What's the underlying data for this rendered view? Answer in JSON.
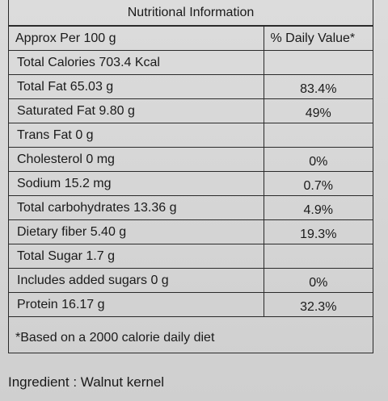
{
  "title": "Nutritional Information",
  "header": {
    "per": "Approx Per 100 g",
    "dv": "% Daily Value*"
  },
  "rows": [
    {
      "nutrient": "Total Calories 703.4 Kcal",
      "dv": ""
    },
    {
      "nutrient": "Total Fat 65.03 g",
      "dv": "83.4%"
    },
    {
      "nutrient": "Saturated Fat 9.80 g",
      "dv": "49%"
    },
    {
      "nutrient": "Trans Fat 0 g",
      "dv": ""
    },
    {
      "nutrient": "Cholesterol 0 mg",
      "dv": "0%"
    },
    {
      "nutrient": "Sodium 15.2 mg",
      "dv": "0.7%"
    },
    {
      "nutrient": "Total carbohydrates 13.36 g",
      "dv": "4.9%"
    },
    {
      "nutrient": "Dietary fiber 5.40 g",
      "dv": "19.3%"
    },
    {
      "nutrient": "Total Sugar 1.7 g",
      "dv": ""
    },
    {
      "nutrient": "Includes added sugars 0 g",
      "dv": "0%"
    },
    {
      "nutrient": "Protein 16.17 g",
      "dv": "32.3%"
    }
  ],
  "footnote": "*Based on a 2000 calorie daily diet",
  "ingredient": "Ingredient : Walnut kernel"
}
